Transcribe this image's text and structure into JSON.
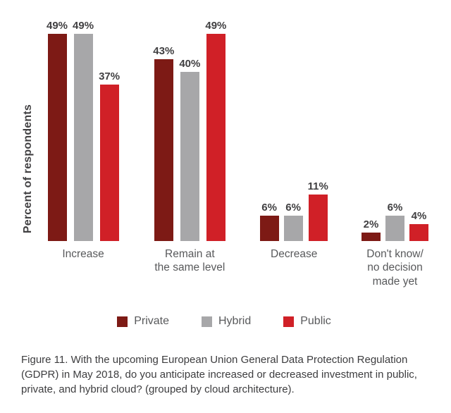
{
  "chart_data": {
    "type": "bar",
    "title": "",
    "ylabel": "Percent of respondents",
    "value_suffix": "%",
    "ylim": [
      0,
      49
    ],
    "grid": false,
    "legend_position": "bottom",
    "categories": [
      "Increase",
      "Remain at\nthe same level",
      "Decrease",
      "Don't know/\nno decision\nmade yet"
    ],
    "series": [
      {
        "name": "Private",
        "color": "#7d1a15",
        "values": [
          49,
          43,
          6,
          2
        ]
      },
      {
        "name": "Hybrid",
        "color": "#a7a7a9",
        "values": [
          49,
          40,
          6,
          6
        ]
      },
      {
        "name": "Public",
        "color": "#d02027",
        "values": [
          37,
          49,
          11,
          4
        ]
      }
    ]
  },
  "caption": "Figure 11. With the upcoming European Union General Data Protection Regulation (GDPR) in May 2018, do you anticipate increased or decreased investment in public, private, and hybrid cloud? (grouped by cloud architecture)."
}
